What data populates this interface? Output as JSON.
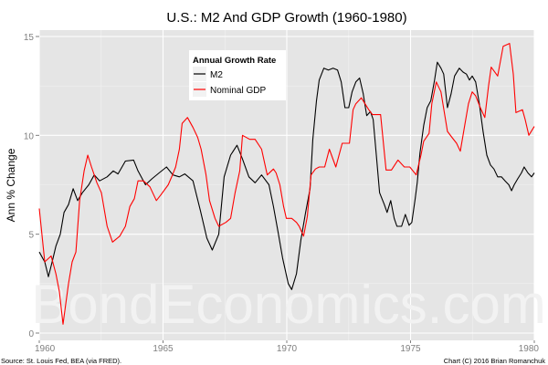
{
  "chart_data": {
    "type": "line",
    "title": "U.S.: M2 And GDP Growth (1960-1980)",
    "xlabel": "",
    "ylabel": "Ann % Change",
    "xlim": [
      1960,
      1980
    ],
    "ylim": [
      -0.2,
      15.4
    ],
    "xticks": [
      "1960",
      "1965",
      "1970",
      "1975",
      "1980"
    ],
    "yticks": [
      "0",
      "5",
      "10",
      "15"
    ],
    "grid": true,
    "legend": {
      "title": "Annual Growth Rate",
      "placement": "top-left-center"
    },
    "source_note": "Source: St. Louis Fed, BEA (via FRED).",
    "credit_note": "Chart (C) 2016 Brian Romanchuk",
    "watermark": "BondEconomics.com",
    "series": [
      {
        "name": "M2",
        "color": "#000000",
        "points": [
          [
            1960.0,
            4.1
          ],
          [
            1960.22,
            3.6
          ],
          [
            1960.37,
            2.85
          ],
          [
            1960.52,
            3.6
          ],
          [
            1960.67,
            4.4
          ],
          [
            1960.85,
            5.0
          ],
          [
            1961.0,
            6.1
          ],
          [
            1961.18,
            6.5
          ],
          [
            1961.37,
            7.3
          ],
          [
            1961.55,
            6.7
          ],
          [
            1961.74,
            7.1
          ],
          [
            1962.0,
            7.5
          ],
          [
            1962.22,
            8.0
          ],
          [
            1962.44,
            7.7
          ],
          [
            1962.74,
            7.9
          ],
          [
            1962.99,
            8.2
          ],
          [
            1963.18,
            8.05
          ],
          [
            1963.48,
            8.7
          ],
          [
            1963.81,
            8.75
          ],
          [
            1963.99,
            8.2
          ],
          [
            1964.29,
            7.5
          ],
          [
            1964.55,
            7.8
          ],
          [
            1964.84,
            8.1
          ],
          [
            1965.14,
            8.4
          ],
          [
            1965.4,
            8.0
          ],
          [
            1965.66,
            7.9
          ],
          [
            1965.88,
            8.05
          ],
          [
            1966.21,
            7.7
          ],
          [
            1966.51,
            6.2
          ],
          [
            1966.77,
            4.8
          ],
          [
            1966.99,
            4.2
          ],
          [
            1967.25,
            5.0
          ],
          [
            1967.47,
            7.9
          ],
          [
            1967.73,
            9.0
          ],
          [
            1967.99,
            9.5
          ],
          [
            1968.21,
            8.8
          ],
          [
            1968.47,
            7.9
          ],
          [
            1968.72,
            7.6
          ],
          [
            1968.98,
            8.0
          ],
          [
            1969.28,
            7.5
          ],
          [
            1969.46,
            6.4
          ],
          [
            1969.65,
            5.1
          ],
          [
            1969.83,
            3.8
          ],
          [
            1970.06,
            2.5
          ],
          [
            1970.2,
            2.2
          ],
          [
            1970.39,
            3.0
          ],
          [
            1970.57,
            4.7
          ],
          [
            1970.76,
            6.1
          ],
          [
            1970.94,
            7.3
          ],
          [
            1971.05,
            9.8
          ],
          [
            1971.2,
            11.75
          ],
          [
            1971.31,
            12.8
          ],
          [
            1971.5,
            13.4
          ],
          [
            1971.68,
            13.3
          ],
          [
            1971.87,
            13.4
          ],
          [
            1972.05,
            13.3
          ],
          [
            1972.2,
            12.7
          ],
          [
            1972.35,
            11.4
          ],
          [
            1972.5,
            11.4
          ],
          [
            1972.64,
            12.2
          ],
          [
            1972.79,
            12.7
          ],
          [
            1972.94,
            12.9
          ],
          [
            1973.09,
            12.1
          ],
          [
            1973.23,
            11.0
          ],
          [
            1973.38,
            11.2
          ],
          [
            1973.49,
            10.8
          ],
          [
            1973.64,
            8.7
          ],
          [
            1973.75,
            7.1
          ],
          [
            1973.94,
            6.5
          ],
          [
            1974.05,
            6.1
          ],
          [
            1974.2,
            6.7
          ],
          [
            1974.34,
            5.8
          ],
          [
            1974.45,
            5.4
          ],
          [
            1974.64,
            5.4
          ],
          [
            1974.79,
            6.0
          ],
          [
            1974.94,
            5.45
          ],
          [
            1975.05,
            5.6
          ],
          [
            1975.19,
            6.8
          ],
          [
            1975.27,
            7.6
          ],
          [
            1975.38,
            9.1
          ],
          [
            1975.53,
            10.5
          ],
          [
            1975.67,
            11.4
          ],
          [
            1975.82,
            11.75
          ],
          [
            1975.97,
            12.8
          ],
          [
            1976.08,
            13.7
          ],
          [
            1976.23,
            13.4
          ],
          [
            1976.34,
            13.1
          ],
          [
            1976.49,
            11.4
          ],
          [
            1976.64,
            12.1
          ],
          [
            1976.78,
            13.0
          ],
          [
            1976.97,
            13.4
          ],
          [
            1977.12,
            13.2
          ],
          [
            1977.26,
            13.1
          ],
          [
            1977.38,
            12.8
          ],
          [
            1977.49,
            13.0
          ],
          [
            1977.63,
            12.7
          ],
          [
            1977.78,
            11.6
          ],
          [
            1977.93,
            10.2
          ],
          [
            1978.08,
            9.0
          ],
          [
            1978.23,
            8.5
          ],
          [
            1978.37,
            8.3
          ],
          [
            1978.52,
            7.9
          ],
          [
            1978.67,
            7.9
          ],
          [
            1978.82,
            7.7
          ],
          [
            1978.97,
            7.5
          ],
          [
            1979.08,
            7.2
          ],
          [
            1979.19,
            7.5
          ],
          [
            1979.33,
            7.8
          ],
          [
            1979.48,
            8.1
          ],
          [
            1979.59,
            8.4
          ],
          [
            1979.74,
            8.1
          ],
          [
            1979.89,
            7.9
          ],
          [
            1980.0,
            8.1
          ]
        ]
      },
      {
        "name": "Nominal GDP",
        "color": "#ff0000",
        "points": [
          [
            1960.0,
            6.3
          ],
          [
            1960.22,
            3.6
          ],
          [
            1960.48,
            3.9
          ],
          [
            1960.67,
            3.0
          ],
          [
            1960.81,
            2.1
          ],
          [
            1960.96,
            0.45
          ],
          [
            1961.18,
            2.5
          ],
          [
            1961.33,
            3.6
          ],
          [
            1961.48,
            4.1
          ],
          [
            1961.63,
            6.7
          ],
          [
            1961.81,
            8.2
          ],
          [
            1961.96,
            9.0
          ],
          [
            1962.11,
            8.4
          ],
          [
            1962.33,
            7.6
          ],
          [
            1962.51,
            7.1
          ],
          [
            1962.74,
            5.4
          ],
          [
            1962.96,
            4.6
          ],
          [
            1963.25,
            4.9
          ],
          [
            1963.48,
            5.4
          ],
          [
            1963.66,
            6.4
          ],
          [
            1963.84,
            6.8
          ],
          [
            1963.99,
            7.7
          ],
          [
            1964.21,
            7.7
          ],
          [
            1964.47,
            7.4
          ],
          [
            1964.73,
            6.7
          ],
          [
            1964.92,
            7.0
          ],
          [
            1965.21,
            7.5
          ],
          [
            1965.4,
            8.05
          ],
          [
            1965.51,
            8.4
          ],
          [
            1965.66,
            9.3
          ],
          [
            1965.77,
            10.6
          ],
          [
            1965.99,
            10.9
          ],
          [
            1966.21,
            10.4
          ],
          [
            1966.4,
            9.9
          ],
          [
            1966.54,
            9.3
          ],
          [
            1966.73,
            8.05
          ],
          [
            1966.88,
            6.7
          ],
          [
            1967.1,
            5.8
          ],
          [
            1967.25,
            5.4
          ],
          [
            1967.54,
            5.6
          ],
          [
            1967.73,
            5.8
          ],
          [
            1967.91,
            7.1
          ],
          [
            1968.1,
            8.2
          ],
          [
            1968.21,
            10.0
          ],
          [
            1968.5,
            9.8
          ],
          [
            1968.72,
            9.8
          ],
          [
            1968.98,
            9.3
          ],
          [
            1969.21,
            8.0
          ],
          [
            1969.46,
            8.3
          ],
          [
            1969.57,
            8.1
          ],
          [
            1969.72,
            7.5
          ],
          [
            1969.87,
            6.4
          ],
          [
            1969.98,
            5.8
          ],
          [
            1970.2,
            5.8
          ],
          [
            1970.39,
            5.6
          ],
          [
            1970.5,
            5.4
          ],
          [
            1970.68,
            4.9
          ],
          [
            1970.83,
            5.9
          ],
          [
            1970.98,
            8.0
          ],
          [
            1971.16,
            8.3
          ],
          [
            1971.31,
            8.4
          ],
          [
            1971.53,
            8.4
          ],
          [
            1971.72,
            9.3
          ],
          [
            1971.98,
            8.4
          ],
          [
            1972.24,
            9.6
          ],
          [
            1972.53,
            9.6
          ],
          [
            1972.68,
            11.3
          ],
          [
            1972.79,
            11.6
          ],
          [
            1973.01,
            11.9
          ],
          [
            1973.31,
            11.3
          ],
          [
            1973.46,
            11.05
          ],
          [
            1973.79,
            11.05
          ],
          [
            1974.01,
            8.25
          ],
          [
            1974.23,
            8.25
          ],
          [
            1974.49,
            8.75
          ],
          [
            1974.75,
            8.4
          ],
          [
            1974.97,
            8.4
          ],
          [
            1975.23,
            8.0
          ],
          [
            1975.42,
            9.0
          ],
          [
            1975.53,
            9.7
          ],
          [
            1975.75,
            10.1
          ],
          [
            1975.86,
            11.6
          ],
          [
            1976.04,
            12.7
          ],
          [
            1976.23,
            12.2
          ],
          [
            1976.49,
            10.2
          ],
          [
            1976.67,
            9.9
          ],
          [
            1976.86,
            9.6
          ],
          [
            1977.01,
            9.2
          ],
          [
            1977.19,
            10.5
          ],
          [
            1977.34,
            11.6
          ],
          [
            1977.49,
            12.2
          ],
          [
            1977.63,
            12.0
          ],
          [
            1977.82,
            11.4
          ],
          [
            1978.0,
            10.9
          ],
          [
            1978.15,
            12.5
          ],
          [
            1978.26,
            13.45
          ],
          [
            1978.52,
            13.0
          ],
          [
            1978.74,
            14.5
          ],
          [
            1979.0,
            14.65
          ],
          [
            1979.15,
            13.1
          ],
          [
            1979.26,
            11.15
          ],
          [
            1979.52,
            11.3
          ],
          [
            1979.63,
            10.8
          ],
          [
            1979.78,
            10.0
          ],
          [
            1980.0,
            10.45
          ]
        ]
      }
    ]
  }
}
